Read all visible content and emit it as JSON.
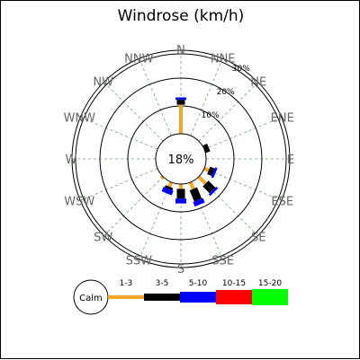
{
  "chart_data": {
    "type": "windrose",
    "title": "Windrose (km/h)",
    "calm_percent": "18%",
    "directions": [
      "N",
      "NNE",
      "NE",
      "ENE",
      "E",
      "ESE",
      "SE",
      "SSE",
      "S",
      "SSW",
      "SW",
      "WSW",
      "W",
      "WNW",
      "NW",
      "NNW"
    ],
    "radial_ticks": [
      "10%",
      "20%",
      "30%"
    ],
    "bins": [
      {
        "label": "1-3",
        "color": "#f5a623"
      },
      {
        "label": "3-5",
        "color": "#000000"
      },
      {
        "label": "5-10",
        "color": "#0000ff"
      },
      {
        "label": "10-15",
        "color": "#ff0000"
      },
      {
        "label": "15-20",
        "color": "#00ff00"
      }
    ],
    "calm_label": "Calm",
    "series": [
      {
        "dir": "N",
        "values": [
          12,
          2,
          1,
          0,
          0
        ]
      },
      {
        "dir": "NNE",
        "values": [
          0,
          0,
          0,
          0,
          0
        ]
      },
      {
        "dir": "NE",
        "values": [
          0,
          0,
          0,
          0,
          0
        ]
      },
      {
        "dir": "ENE",
        "values": [
          0,
          2,
          0,
          0,
          0
        ]
      },
      {
        "dir": "E",
        "values": [
          0,
          0,
          0,
          0,
          0
        ]
      },
      {
        "dir": "ESE",
        "values": [
          2,
          2,
          1,
          0,
          0
        ]
      },
      {
        "dir": "SE",
        "values": [
          4,
          4,
          1,
          0,
          0
        ]
      },
      {
        "dir": "SSE",
        "values": [
          3,
          5,
          2,
          0,
          0
        ]
      },
      {
        "dir": "S",
        "values": [
          2,
          4,
          2,
          0,
          0
        ]
      },
      {
        "dir": "SSW",
        "values": [
          2,
          1,
          2,
          0,
          0
        ]
      },
      {
        "dir": "SW",
        "values": [
          1,
          0,
          0,
          0,
          0
        ]
      },
      {
        "dir": "WSW",
        "values": [
          0,
          0,
          0,
          0,
          0
        ]
      },
      {
        "dir": "W",
        "values": [
          0,
          0,
          0,
          0,
          0
        ]
      },
      {
        "dir": "WNW",
        "values": [
          0,
          0,
          0,
          0,
          0
        ]
      },
      {
        "dir": "NW",
        "values": [
          0,
          0,
          0,
          0,
          0
        ]
      },
      {
        "dir": "NNW",
        "values": [
          0,
          0,
          0,
          0,
          0
        ]
      }
    ]
  }
}
